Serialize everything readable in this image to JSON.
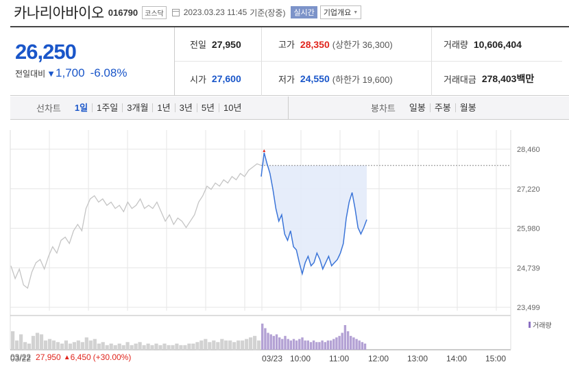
{
  "header": {
    "company": "카나리아바이오",
    "code": "016790",
    "market": "코스닥",
    "datetime": "2023.03.23 11:45",
    "basis": "기준(장중)",
    "realtime_label": "실시간",
    "company_info_label": "기업개요"
  },
  "price": {
    "current": "26,250",
    "change_label": "전일대비",
    "change_value": "1,700",
    "change_rate": "-6.08%"
  },
  "stats": {
    "prev_close": {
      "label": "전일",
      "value": "27,950"
    },
    "high": {
      "label": "고가",
      "value": "28,350",
      "limit_text": "(상한가 36,300)"
    },
    "volume": {
      "label": "거래량",
      "value": "10,606,404"
    },
    "open": {
      "label": "시가",
      "value": "27,600"
    },
    "low": {
      "label": "저가",
      "value": "24,550",
      "limit_text": "(하한가 19,600)"
    },
    "trade_value": {
      "label": "거래대금",
      "value": "278,403",
      "unit": "백만"
    }
  },
  "tabs": {
    "period_title": "선차트",
    "periods": [
      "1일",
      "1주일",
      "3개월",
      "1년",
      "3년",
      "5년",
      "10년"
    ],
    "active_period": "1일",
    "candle_title": "봉차트",
    "candles": [
      "일봉",
      "주봉",
      "월봉"
    ]
  },
  "footer": {
    "date": "03/22",
    "price": "27,950",
    "change": "6,450",
    "rate": "(+30.00%)"
  },
  "chart_data": {
    "type": "line",
    "y_ticks": [
      "28,460",
      "27,220",
      "25,980",
      "24,739",
      "23,499"
    ],
    "ylim": [
      23499,
      28460
    ],
    "x_labels": [
      "03/22",
      "03/23",
      "10:00",
      "11:00",
      "12:00",
      "13:00",
      "14:00",
      "15:00"
    ],
    "volume_label": "거래량",
    "prev_close_ref": 27950,
    "colors": {
      "prev_day": "#c4c4c4",
      "today": "#3a74d8",
      "fill": "#e3ebfa",
      "volume_today": "#b3a1d4",
      "volume_prev": "#d2d2d2",
      "high_marker": "#e0241c"
    },
    "series": [
      {
        "name": "03/22",
        "values": [
          24800,
          24400,
          24700,
          24200,
          24100,
          24600,
          24900,
          25000,
          24700,
          25100,
          25400,
          25200,
          25600,
          25700,
          25500,
          25900,
          26100,
          25900,
          26600,
          26900,
          27000,
          26800,
          26900,
          26700,
          26800,
          26600,
          26700,
          26500,
          26800,
          26600,
          26700,
          26900,
          26600,
          26700,
          26600,
          26800,
          26500,
          26200,
          26400,
          26100,
          26300,
          26200,
          26000,
          26200,
          26400,
          26800,
          27000,
          27300,
          27200,
          27400,
          27300,
          27500,
          27400,
          27600,
          27500,
          27700,
          27600,
          27800,
          27900,
          28000,
          27950
        ]
      },
      {
        "name": "03/23",
        "values": [
          27600,
          28350,
          28000,
          27700,
          27200,
          26600,
          26200,
          26400,
          25800,
          25600,
          25900,
          25400,
          25300,
          24900,
          24550,
          24900,
          25100,
          24800,
          24900,
          25200,
          25000,
          24700,
          24900,
          25100,
          24800,
          24900,
          25000,
          25200,
          25500,
          26300,
          26800,
          27100,
          26600,
          26000,
          25800,
          26000,
          26250
        ]
      }
    ],
    "volume": {
      "prev": [
        0.6,
        0.3,
        0.5,
        0.25,
        0.2,
        0.45,
        0.55,
        0.5,
        0.3,
        0.35,
        0.3,
        0.25,
        0.2,
        0.3,
        0.2,
        0.25,
        0.3,
        0.25,
        0.4,
        0.3,
        0.35,
        0.2,
        0.25,
        0.15,
        0.2,
        0.15,
        0.2,
        0.15,
        0.25,
        0.15,
        0.2,
        0.25,
        0.15,
        0.2,
        0.15,
        0.2,
        0.15,
        0.2,
        0.15,
        0.15,
        0.2,
        0.15,
        0.15,
        0.2,
        0.2,
        0.25,
        0.3,
        0.35,
        0.25,
        0.3,
        0.25,
        0.35,
        0.3,
        0.3,
        0.25,
        0.3,
        0.3,
        0.35,
        0.4,
        0.45,
        0.3
      ],
      "today": [
        0.85,
        0.7,
        0.55,
        0.5,
        0.45,
        0.5,
        0.4,
        0.35,
        0.45,
        0.35,
        0.3,
        0.35,
        0.3,
        0.35,
        0.4,
        0.3,
        0.3,
        0.25,
        0.3,
        0.25,
        0.25,
        0.3,
        0.25,
        0.3,
        0.3,
        0.35,
        0.4,
        0.45,
        0.55,
        0.8,
        0.6,
        0.45,
        0.4,
        0.35,
        0.3,
        0.25,
        0.2
      ]
    }
  }
}
